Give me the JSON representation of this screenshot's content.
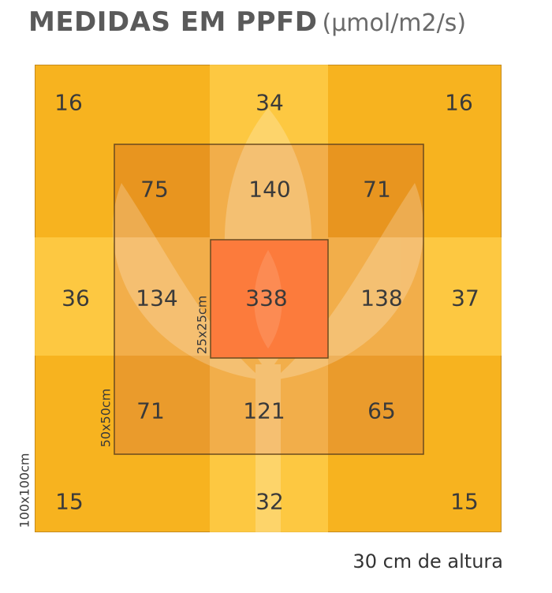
{
  "title": {
    "main": "MEDIDAS EM PPFD",
    "unit": "(µmol/m2/s)"
  },
  "grid": [
    [
      "16",
      "34",
      "16"
    ],
    [
      "75",
      "140",
      "71"
    ],
    [
      "36",
      "134",
      "338",
      "138",
      "37"
    ],
    [
      "71",
      "121",
      "65"
    ],
    [
      "15",
      "32",
      "15"
    ]
  ],
  "zones": {
    "inner": "25x25cm",
    "middle": "50x50cm",
    "outer": "100x100cm"
  },
  "footer": "30 cm de altura",
  "colors": {
    "outer": "#f6b21f",
    "middle": "#eda43c",
    "middle_dark": "#e6931f",
    "center": "#fb7a3c",
    "light_band": "#ffd45e"
  }
}
